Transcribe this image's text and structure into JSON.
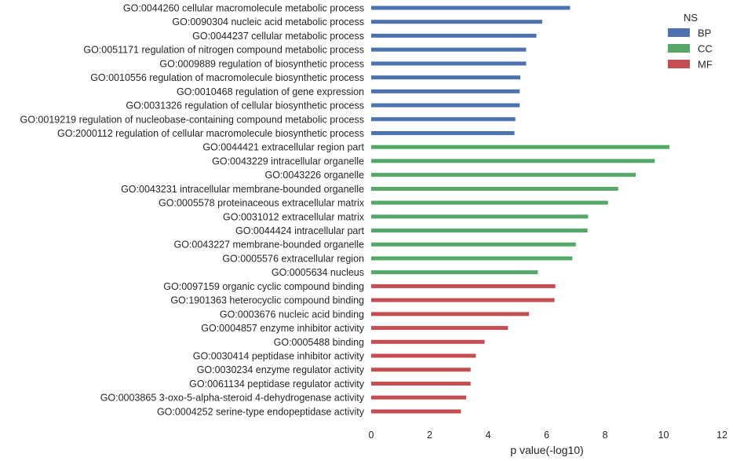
{
  "chart_data": {
    "type": "bar",
    "orientation": "horizontal",
    "xlabel": "p value(-log10)",
    "ylabel": "",
    "xlim": [
      0,
      12
    ],
    "xticks": [
      0,
      2,
      4,
      6,
      8,
      10,
      12
    ],
    "grid": false,
    "legend": {
      "title": "NS",
      "placement": "top-right",
      "entries": [
        {
          "name": "BP",
          "color": "#4c72b0"
        },
        {
          "name": "CC",
          "color": "#55a868"
        },
        {
          "name": "MF",
          "color": "#c44e52"
        }
      ]
    },
    "bars": [
      {
        "label": "GO:0044260 cellular macromolecule metabolic process",
        "value": 6.8,
        "group": "BP"
      },
      {
        "label": "GO:0090304 nucleic acid metabolic process",
        "value": 5.85,
        "group": "BP"
      },
      {
        "label": "GO:0044237 cellular metabolic process",
        "value": 5.65,
        "group": "BP"
      },
      {
        "label": "GO:0051171 regulation of nitrogen compound metabolic process",
        "value": 5.3,
        "group": "BP"
      },
      {
        "label": "GO:0009889 regulation of biosynthetic process",
        "value": 5.3,
        "group": "BP"
      },
      {
        "label": "GO:0010556 regulation of macromolecule biosynthetic process",
        "value": 5.1,
        "group": "BP"
      },
      {
        "label": "GO:0010468 regulation of gene expression",
        "value": 5.08,
        "group": "BP"
      },
      {
        "label": "GO:0031326 regulation of cellular biosynthetic process",
        "value": 5.08,
        "group": "BP"
      },
      {
        "label": "GO:0019219 regulation of nucleobase-containing compound metabolic process",
        "value": 4.93,
        "group": "BP"
      },
      {
        "label": "GO:2000112 regulation of cellular macromolecule biosynthetic process",
        "value": 4.9,
        "group": "BP"
      },
      {
        "label": "GO:0044421 extracellular region part",
        "value": 10.2,
        "group": "CC"
      },
      {
        "label": "GO:0043229 intracellular organelle",
        "value": 9.7,
        "group": "CC"
      },
      {
        "label": "GO:0043226 organelle",
        "value": 9.05,
        "group": "CC"
      },
      {
        "label": "GO:0043231 intracellular membrane-bounded organelle",
        "value": 8.45,
        "group": "CC"
      },
      {
        "label": "GO:0005578 proteinaceous extracellular matrix",
        "value": 8.1,
        "group": "CC"
      },
      {
        "label": "GO:0031012 extracellular matrix",
        "value": 7.42,
        "group": "CC"
      },
      {
        "label": "GO:0044424 intracellular part",
        "value": 7.4,
        "group": "CC"
      },
      {
        "label": "GO:0043227 membrane-bounded organelle",
        "value": 7.0,
        "group": "CC"
      },
      {
        "label": "GO:0005576 extracellular region",
        "value": 6.88,
        "group": "CC"
      },
      {
        "label": "GO:0005634 nucleus",
        "value": 5.7,
        "group": "CC"
      },
      {
        "label": "GO:0097159 organic cyclic compound binding",
        "value": 6.3,
        "group": "MF"
      },
      {
        "label": "GO:1901363 heterocyclic compound binding",
        "value": 6.27,
        "group": "MF"
      },
      {
        "label": "GO:0003676 nucleic acid binding",
        "value": 5.4,
        "group": "MF"
      },
      {
        "label": "GO:0004857 enzyme inhibitor activity",
        "value": 4.68,
        "group": "MF"
      },
      {
        "label": "GO:0005488 binding",
        "value": 3.88,
        "group": "MF"
      },
      {
        "label": "GO:0030414 peptidase inhibitor activity",
        "value": 3.58,
        "group": "MF"
      },
      {
        "label": "GO:0030234 enzyme regulator activity",
        "value": 3.4,
        "group": "MF"
      },
      {
        "label": "GO:0061134 peptidase regulator activity",
        "value": 3.4,
        "group": "MF"
      },
      {
        "label": "GO:0003865 3-oxo-5-alpha-steroid 4-dehydrogenase activity",
        "value": 3.25,
        "group": "MF"
      },
      {
        "label": "GO:0004252 serine-type endopeptidase activity",
        "value": 3.07,
        "group": "MF"
      }
    ]
  }
}
